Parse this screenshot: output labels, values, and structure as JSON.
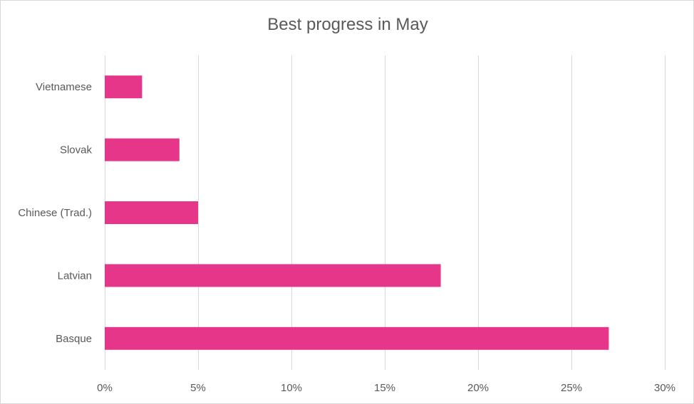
{
  "chart_data": {
    "type": "bar",
    "orientation": "horizontal",
    "title": "Best progress in May",
    "categories": [
      "Vietnamese",
      "Slovak",
      "Chinese (Trad.)",
      "Latvian",
      "Basque"
    ],
    "values": [
      2,
      4,
      5,
      18,
      27
    ],
    "unit": "%",
    "xlim": [
      0,
      30
    ],
    "xticks": [
      0,
      5,
      10,
      15,
      20,
      25,
      30
    ],
    "xtick_labels": [
      "0%",
      "5%",
      "10%",
      "15%",
      "20%",
      "25%",
      "30%"
    ],
    "bar_color": "#e6368a",
    "grid": true,
    "legend": false
  }
}
